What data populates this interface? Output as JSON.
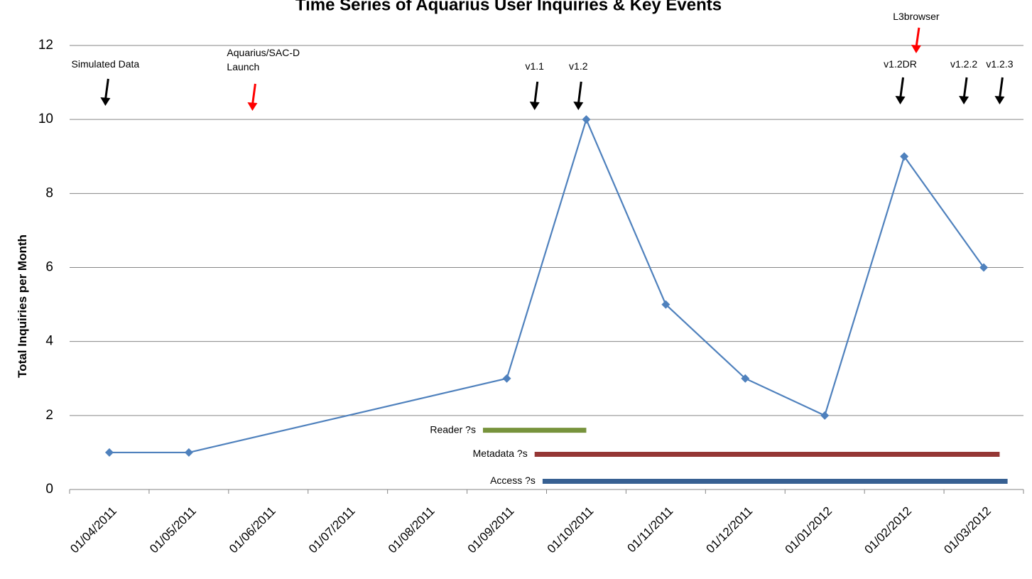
{
  "chart_data": {
    "type": "line",
    "title": "Time Series of Aquarius User Inquiries & Key Events",
    "xlabel": "",
    "ylabel": "Total Inquiries per Month",
    "ylim": [
      0,
      12
    ],
    "yticks": [
      0,
      2,
      4,
      6,
      8,
      10,
      12
    ],
    "categories": [
      "01/04/2011",
      "01/05/2011",
      "01/06/2011",
      "01/07/2011",
      "01/08/2011",
      "01/09/2011",
      "01/10/2011",
      "01/11/2011",
      "01/12/2011",
      "01/01/2012",
      "01/02/2012",
      "01/03/2012"
    ],
    "grid": true,
    "legend": "none",
    "series": [
      {
        "color": "#4F81BD",
        "points": [
          {
            "x": 0.5,
            "y": 1
          },
          {
            "x": 1.5,
            "y": 1
          },
          {
            "x": 5.5,
            "y": 3
          },
          {
            "x": 6.5,
            "y": 10
          },
          {
            "x": 7.5,
            "y": 5
          },
          {
            "x": 8.5,
            "y": 3
          },
          {
            "x": 9.5,
            "y": 2
          },
          {
            "x": 10.5,
            "y": 9
          },
          {
            "x": 11.5,
            "y": 6
          }
        ]
      }
    ],
    "event_markers": [
      {
        "label": [
          "Simulated Data"
        ],
        "x": 0.45,
        "color": "#000000"
      },
      {
        "label": [
          "Aquarius/SAC-D",
          "Launch"
        ],
        "x": 2.3,
        "color": "#FF0000"
      },
      {
        "label": [
          "v1.1"
        ],
        "x": 5.85,
        "color": "#000000"
      },
      {
        "label": [
          "v1.2"
        ],
        "x": 6.4,
        "color": "#000000"
      },
      {
        "label": [
          "v1.2DR"
        ],
        "x": 10.45,
        "color": "#000000"
      },
      {
        "label": [
          "L3browser"
        ],
        "x": 10.65,
        "color": "#FF0000"
      },
      {
        "label": [
          "v1.2.2"
        ],
        "x": 11.25,
        "color": "#000000"
      },
      {
        "label": [
          "v1.2.3"
        ],
        "x": 11.7,
        "color": "#000000"
      }
    ],
    "period_bars": [
      {
        "label": "Reader ?s",
        "x_start": 5.2,
        "x_end": 6.5,
        "y": 1.6,
        "color": "#77933C"
      },
      {
        "label": "Metadata ?s",
        "x_start": 5.85,
        "x_end": 11.7,
        "y": 0.95,
        "color": "#953735"
      },
      {
        "label": "Access ?s",
        "x_start": 5.95,
        "x_end": 11.8,
        "y": 0.22,
        "color": "#376092"
      }
    ]
  }
}
